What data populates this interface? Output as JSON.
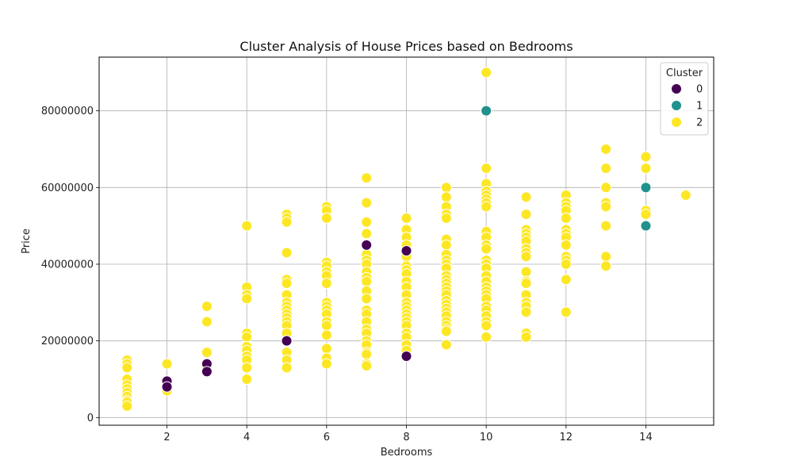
{
  "chart_data": {
    "type": "scatter",
    "title": "Cluster Analysis of House Prices based on Bedrooms",
    "xlabel": "Bedrooms",
    "ylabel": "Price",
    "xlim": [
      0.3,
      15.7
    ],
    "ylim": [
      -2000000,
      94000000
    ],
    "x_ticks": [
      2,
      4,
      6,
      8,
      10,
      12,
      14
    ],
    "y_ticks": [
      0,
      20000000,
      40000000,
      60000000,
      80000000
    ],
    "y_tick_labels": [
      "0",
      "20000000",
      "40000000",
      "60000000",
      "80000000"
    ],
    "grid": true,
    "legend": {
      "title": "Cluster",
      "placement": "top-right"
    },
    "series": [
      {
        "name": "0",
        "color": "#440154",
        "points": [
          [
            2,
            9500000
          ],
          [
            2,
            8000000
          ],
          [
            3,
            14000000
          ],
          [
            3,
            12000000
          ],
          [
            5,
            20000000
          ],
          [
            7,
            45000000
          ],
          [
            8,
            43500000
          ],
          [
            8,
            16000000
          ]
        ]
      },
      {
        "name": "1",
        "color": "#21918c",
        "points": [
          [
            10,
            80000000
          ],
          [
            14,
            60000000
          ],
          [
            14,
            50000000
          ]
        ]
      },
      {
        "name": "2",
        "color": "#fde725",
        "points": [
          [
            1,
            15000000
          ],
          [
            1,
            14000000
          ],
          [
            1,
            13000000
          ],
          [
            1,
            10000000
          ],
          [
            1,
            8500000
          ],
          [
            1,
            7500000
          ],
          [
            1,
            6500000
          ],
          [
            1,
            5500000
          ],
          [
            1,
            4500000
          ],
          [
            1,
            4000000
          ],
          [
            1,
            3000000
          ],
          [
            2,
            14000000
          ],
          [
            2,
            7000000
          ],
          [
            3,
            29000000
          ],
          [
            3,
            25000000
          ],
          [
            3,
            17000000
          ],
          [
            3,
            13000000
          ],
          [
            4,
            50000000
          ],
          [
            4,
            34000000
          ],
          [
            4,
            32000000
          ],
          [
            4,
            31000000
          ],
          [
            4,
            22000000
          ],
          [
            4,
            21000000
          ],
          [
            4,
            18500000
          ],
          [
            4,
            17500000
          ],
          [
            4,
            16000000
          ],
          [
            4,
            15000000
          ],
          [
            4,
            13000000
          ],
          [
            4,
            10000000
          ],
          [
            5,
            53000000
          ],
          [
            5,
            52000000
          ],
          [
            5,
            51000000
          ],
          [
            5,
            43000000
          ],
          [
            5,
            36000000
          ],
          [
            5,
            35000000
          ],
          [
            5,
            32000000
          ],
          [
            5,
            30000000
          ],
          [
            5,
            29000000
          ],
          [
            5,
            28000000
          ],
          [
            5,
            27000000
          ],
          [
            5,
            26000000
          ],
          [
            5,
            25000000
          ],
          [
            5,
            24000000
          ],
          [
            5,
            22000000
          ],
          [
            5,
            17000000
          ],
          [
            5,
            15000000
          ],
          [
            5,
            13000000
          ],
          [
            6,
            55000000
          ],
          [
            6,
            54000000
          ],
          [
            6,
            52000000
          ],
          [
            6,
            40500000
          ],
          [
            6,
            39500000
          ],
          [
            6,
            38000000
          ],
          [
            6,
            37000000
          ],
          [
            6,
            35000000
          ],
          [
            6,
            30000000
          ],
          [
            6,
            29000000
          ],
          [
            6,
            28000000
          ],
          [
            6,
            27000000
          ],
          [
            6,
            25000000
          ],
          [
            6,
            24000000
          ],
          [
            6,
            21500000
          ],
          [
            6,
            18000000
          ],
          [
            6,
            15500000
          ],
          [
            6,
            14000000
          ],
          [
            7,
            62500000
          ],
          [
            7,
            56000000
          ],
          [
            7,
            51000000
          ],
          [
            7,
            48000000
          ],
          [
            7,
            42500000
          ],
          [
            7,
            41000000
          ],
          [
            7,
            40000000
          ],
          [
            7,
            38000000
          ],
          [
            7,
            36500000
          ],
          [
            7,
            35500000
          ],
          [
            7,
            33000000
          ],
          [
            7,
            31000000
          ],
          [
            7,
            28000000
          ],
          [
            7,
            27000000
          ],
          [
            7,
            25000000
          ],
          [
            7,
            23000000
          ],
          [
            7,
            22000000
          ],
          [
            7,
            20000000
          ],
          [
            7,
            19000000
          ],
          [
            7,
            17000000
          ],
          [
            7,
            16500000
          ],
          [
            7,
            14000000
          ],
          [
            7,
            13500000
          ],
          [
            8,
            52000000
          ],
          [
            8,
            49000000
          ],
          [
            8,
            47000000
          ],
          [
            8,
            45000000
          ],
          [
            8,
            42000000
          ],
          [
            8,
            39500000
          ],
          [
            8,
            38500000
          ],
          [
            8,
            37500000
          ],
          [
            8,
            35500000
          ],
          [
            8,
            34000000
          ],
          [
            8,
            32000000
          ],
          [
            8,
            30000000
          ],
          [
            8,
            29000000
          ],
          [
            8,
            28000000
          ],
          [
            8,
            27000000
          ],
          [
            8,
            26000000
          ],
          [
            8,
            25000000
          ],
          [
            8,
            24000000
          ],
          [
            8,
            22000000
          ],
          [
            8,
            21000000
          ],
          [
            8,
            19000000
          ],
          [
            8,
            17500000
          ],
          [
            9,
            60000000
          ],
          [
            9,
            57500000
          ],
          [
            9,
            55000000
          ],
          [
            9,
            53000000
          ],
          [
            9,
            52000000
          ],
          [
            9,
            46500000
          ],
          [
            9,
            45000000
          ],
          [
            9,
            42500000
          ],
          [
            9,
            41000000
          ],
          [
            9,
            40000000
          ],
          [
            9,
            39000000
          ],
          [
            9,
            37000000
          ],
          [
            9,
            36000000
          ],
          [
            9,
            35000000
          ],
          [
            9,
            34000000
          ],
          [
            9,
            33000000
          ],
          [
            9,
            32000000
          ],
          [
            9,
            30500000
          ],
          [
            9,
            29500000
          ],
          [
            9,
            28500000
          ],
          [
            9,
            27500000
          ],
          [
            9,
            26500000
          ],
          [
            9,
            25000000
          ],
          [
            9,
            24000000
          ],
          [
            9,
            23000000
          ],
          [
            9,
            22500000
          ],
          [
            9,
            19000000
          ],
          [
            10,
            90000000
          ],
          [
            10,
            65000000
          ],
          [
            10,
            61000000
          ],
          [
            10,
            59000000
          ],
          [
            10,
            58000000
          ],
          [
            10,
            57000000
          ],
          [
            10,
            56000000
          ],
          [
            10,
            55000000
          ],
          [
            10,
            48500000
          ],
          [
            10,
            47000000
          ],
          [
            10,
            45000000
          ],
          [
            10,
            44000000
          ],
          [
            10,
            41000000
          ],
          [
            10,
            40000000
          ],
          [
            10,
            39000000
          ],
          [
            10,
            37000000
          ],
          [
            10,
            35500000
          ],
          [
            10,
            34000000
          ],
          [
            10,
            33000000
          ],
          [
            10,
            32000000
          ],
          [
            10,
            31000000
          ],
          [
            10,
            29000000
          ],
          [
            10,
            28000000
          ],
          [
            10,
            26500000
          ],
          [
            10,
            25000000
          ],
          [
            10,
            24000000
          ],
          [
            10,
            21000000
          ],
          [
            11,
            57500000
          ],
          [
            11,
            53000000
          ],
          [
            11,
            49000000
          ],
          [
            11,
            48000000
          ],
          [
            11,
            47000000
          ],
          [
            11,
            46000000
          ],
          [
            11,
            44000000
          ],
          [
            11,
            43000000
          ],
          [
            11,
            42000000
          ],
          [
            11,
            38000000
          ],
          [
            11,
            35500000
          ],
          [
            11,
            35000000
          ],
          [
            11,
            32000000
          ],
          [
            11,
            30000000
          ],
          [
            11,
            29000000
          ],
          [
            11,
            27500000
          ],
          [
            11,
            22000000
          ],
          [
            11,
            21000000
          ],
          [
            12,
            58000000
          ],
          [
            12,
            56000000
          ],
          [
            12,
            55000000
          ],
          [
            12,
            54000000
          ],
          [
            12,
            52000000
          ],
          [
            12,
            49000000
          ],
          [
            12,
            48000000
          ],
          [
            12,
            47000000
          ],
          [
            12,
            45000000
          ],
          [
            12,
            42000000
          ],
          [
            12,
            41000000
          ],
          [
            12,
            40000000
          ],
          [
            12,
            36000000
          ],
          [
            12,
            27500000
          ],
          [
            13,
            70000000
          ],
          [
            13,
            65000000
          ],
          [
            13,
            60000000
          ],
          [
            13,
            56000000
          ],
          [
            13,
            55000000
          ],
          [
            13,
            50000000
          ],
          [
            13,
            42000000
          ],
          [
            13,
            39500000
          ],
          [
            14,
            68000000
          ],
          [
            14,
            65000000
          ],
          [
            14,
            54000000
          ],
          [
            14,
            53000000
          ],
          [
            15,
            58000000
          ]
        ]
      }
    ]
  }
}
